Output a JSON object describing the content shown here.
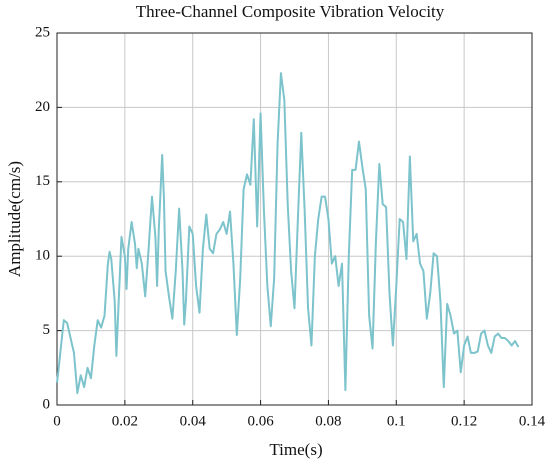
{
  "chart_data": {
    "type": "line",
    "title": "Three-Channel Composite Vibration Velocity",
    "xlabel": "Time(s)",
    "ylabel": "Amplitude(cm/s)",
    "color": "#7cc3cc",
    "grid": true,
    "xlim": [
      0,
      0.14
    ],
    "ylim": [
      0,
      25
    ],
    "xticks": [
      0,
      0.02,
      0.04,
      0.06,
      0.08,
      0.1,
      0.12,
      0.14
    ],
    "yticks": [
      0,
      5,
      10,
      15,
      20,
      25
    ],
    "x": [
      0,
      0.0005,
      0.002,
      0.003,
      0.004,
      0.005,
      0.006,
      0.007,
      0.008,
      0.009,
      0.01,
      0.011,
      0.012,
      0.013,
      0.014,
      0.015,
      0.0155,
      0.016,
      0.017,
      0.0175,
      0.018,
      0.019,
      0.02,
      0.0205,
      0.021,
      0.022,
      0.023,
      0.0235,
      0.024,
      0.025,
      0.026,
      0.027,
      0.028,
      0.029,
      0.0295,
      0.03,
      0.031,
      0.0315,
      0.032,
      0.033,
      0.034,
      0.035,
      0.036,
      0.037,
      0.0375,
      0.038,
      0.039,
      0.04,
      0.041,
      0.042,
      0.043,
      0.044,
      0.045,
      0.046,
      0.047,
      0.048,
      0.049,
      0.05,
      0.051,
      0.052,
      0.053,
      0.054,
      0.055,
      0.056,
      0.057,
      0.058,
      0.059,
      0.06,
      0.061,
      0.062,
      0.063,
      0.064,
      0.065,
      0.066,
      0.067,
      0.068,
      0.069,
      0.07,
      0.071,
      0.072,
      0.073,
      0.074,
      0.075,
      0.076,
      0.077,
      0.078,
      0.079,
      0.08,
      0.081,
      0.082,
      0.083,
      0.084,
      0.085,
      0.086,
      0.087,
      0.088,
      0.089,
      0.09,
      0.091,
      0.092,
      0.093,
      0.094,
      0.095,
      0.096,
      0.097,
      0.098,
      0.099,
      0.1,
      0.101,
      0.102,
      0.103,
      0.104,
      0.105,
      0.106,
      0.107,
      0.108,
      0.109,
      0.11,
      0.111,
      0.112,
      0.113,
      0.114,
      0.115,
      0.116,
      0.117,
      0.118,
      0.119,
      0.12,
      0.121,
      0.122,
      0.123,
      0.124,
      0.125,
      0.126,
      0.127,
      0.128,
      0.129,
      0.13,
      0.131,
      0.132,
      0.133,
      0.134,
      0.135,
      0.136
    ],
    "values": [
      1.5,
      2.5,
      5.7,
      5.5,
      4.5,
      3.5,
      0.8,
      2.0,
      1.2,
      2.5,
      1.8,
      4.0,
      5.7,
      5.2,
      6.0,
      9.5,
      10.3,
      9.8,
      7.0,
      3.3,
      6.0,
      11.3,
      10.0,
      7.8,
      10.5,
      12.3,
      10.8,
      9.2,
      10.5,
      9.5,
      7.3,
      10.5,
      14.0,
      11.3,
      8.0,
      11.8,
      16.8,
      14.0,
      9.0,
      7.3,
      5.8,
      9.0,
      13.2,
      9.0,
      5.4,
      7.0,
      12.0,
      11.5,
      8.0,
      6.2,
      10.5,
      12.8,
      10.5,
      10.2,
      11.5,
      11.8,
      12.3,
      11.5,
      13.0,
      9.5,
      4.7,
      8.5,
      14.5,
      15.5,
      14.8,
      19.2,
      12.0,
      19.6,
      13.0,
      8.0,
      5.3,
      8.5,
      17.5,
      22.3,
      20.5,
      13.5,
      9.0,
      6.5,
      12.5,
      18.3,
      13.0,
      6.5,
      4.0,
      10.0,
      12.5,
      14.0,
      14.0,
      12.5,
      9.5,
      10.0,
      8.0,
      9.5,
      1.0,
      10.0,
      15.8,
      15.8,
      17.7,
      16.0,
      14.5,
      6.0,
      3.8,
      11.0,
      16.2,
      13.5,
      13.3,
      7.5,
      4.0,
      8.0,
      12.5,
      12.3,
      9.8,
      16.7,
      11.0,
      11.5,
      9.5,
      9.0,
      5.8,
      7.5,
      10.2,
      10.0,
      7.0,
      1.2,
      6.8,
      6.0,
      4.8,
      5.0,
      2.2,
      4.0,
      4.6,
      3.5,
      3.5,
      3.6,
      4.8,
      5.0,
      4.0,
      3.5,
      4.6,
      4.8,
      4.5,
      4.5,
      4.3,
      4.0,
      4.3,
      3.9
    ]
  }
}
